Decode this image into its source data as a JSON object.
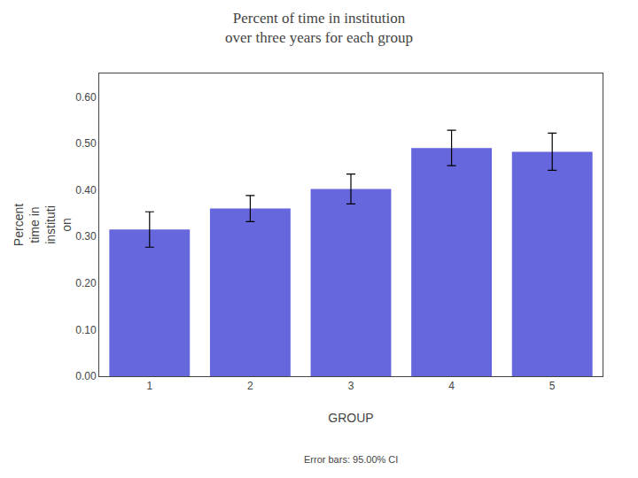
{
  "chart_data": {
    "type": "bar",
    "title": "Percent of time in institution\nover three years for each group",
    "xlabel": "GROUP",
    "ylabel": "Percent\ntime in\ninstituti\non",
    "annotations": [
      "Error bars: 95.00% CI"
    ],
    "categories": [
      1,
      2,
      3,
      4,
      5
    ],
    "values": [
      0.315,
      0.36,
      0.402,
      0.49,
      0.482
    ],
    "errors": [
      0.038,
      0.028,
      0.032,
      0.038,
      0.04
    ],
    "color": "#6666DD",
    "ylim": [
      0.0,
      0.65
    ],
    "yticks": [
      {
        "value": 0.0,
        "label": "0.00"
      },
      {
        "value": 0.1,
        "label": "0.10"
      },
      {
        "value": 0.2,
        "label": "0.20"
      },
      {
        "value": 0.3,
        "label": "0.30"
      },
      {
        "value": 0.4,
        "label": "0.40"
      },
      {
        "value": 0.5,
        "label": "0.50"
      },
      {
        "value": 0.6,
        "label": "0.60"
      }
    ],
    "grid": false
  }
}
